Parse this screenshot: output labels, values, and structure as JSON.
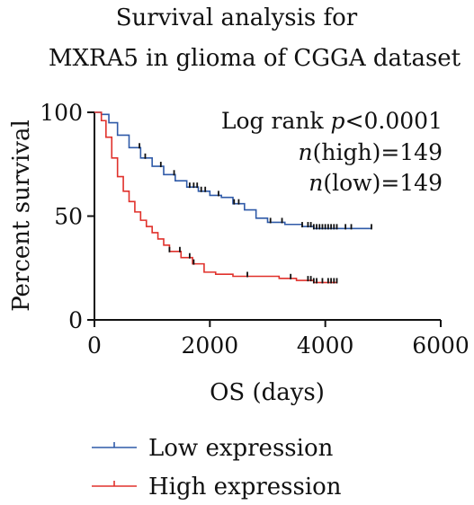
{
  "chart_data": {
    "type": "line",
    "subtype": "kaplan-meier",
    "title": [
      "Survival analysis for",
      "MXRA5 in glioma of CGGA dataset"
    ],
    "xlabel": "OS (days)",
    "ylabel": "Percent survival",
    "xlim": [
      0,
      6000
    ],
    "ylim": [
      0,
      100
    ],
    "x_ticks": [
      0,
      2000,
      4000,
      6000
    ],
    "y_ticks": [
      0,
      50,
      100
    ],
    "grid": false,
    "legend_position": "bottom-left",
    "annotations": {
      "log_rank_prefix": "Log rank ",
      "log_rank_p": "p",
      "log_rank_value": "<0.0001",
      "n_high_var": "n",
      "n_high_text": "(high)=149",
      "n_low_var": "n",
      "n_low_text": "(low)=149"
    },
    "series": [
      {
        "name": "Low expression",
        "color": "#2f5aa8",
        "points": [
          [
            0,
            100
          ],
          [
            120,
            99
          ],
          [
            250,
            95
          ],
          [
            400,
            89
          ],
          [
            600,
            83
          ],
          [
            800,
            78
          ],
          [
            1000,
            74
          ],
          [
            1200,
            70
          ],
          [
            1400,
            67
          ],
          [
            1600,
            64
          ],
          [
            1800,
            62
          ],
          [
            2000,
            60
          ],
          [
            2200,
            59
          ],
          [
            2400,
            56
          ],
          [
            2600,
            53
          ],
          [
            2800,
            49
          ],
          [
            3000,
            47
          ],
          [
            3300,
            46
          ],
          [
            3600,
            45
          ],
          [
            3800,
            44
          ],
          [
            4000,
            44
          ],
          [
            4200,
            44
          ],
          [
            4400,
            44
          ],
          [
            4800,
            44
          ]
        ],
        "censor_x": [
          780,
          880,
          1150,
          1380,
          1650,
          1720,
          1780,
          1850,
          1920,
          2150,
          2420,
          2500,
          3050,
          3250,
          3600,
          3700,
          3750,
          3800,
          3850,
          3900,
          3950,
          4000,
          4050,
          4100,
          4150,
          4200,
          4350,
          4450,
          4800
        ]
      },
      {
        "name": "High expression",
        "color": "#e0312b",
        "points": [
          [
            0,
            100
          ],
          [
            120,
            96
          ],
          [
            200,
            88
          ],
          [
            300,
            78
          ],
          [
            400,
            69
          ],
          [
            500,
            62
          ],
          [
            600,
            57
          ],
          [
            700,
            52
          ],
          [
            800,
            48
          ],
          [
            900,
            45
          ],
          [
            1000,
            42
          ],
          [
            1100,
            39
          ],
          [
            1200,
            36
          ],
          [
            1300,
            33
          ],
          [
            1500,
            30
          ],
          [
            1700,
            27
          ],
          [
            1900,
            23
          ],
          [
            2100,
            22
          ],
          [
            2400,
            21
          ],
          [
            2800,
            21
          ],
          [
            3200,
            20
          ],
          [
            3500,
            19
          ],
          [
            3800,
            18
          ],
          [
            4000,
            18
          ],
          [
            4200,
            18
          ]
        ],
        "censor_x": [
          1300,
          1480,
          1650,
          1720,
          2650,
          3400,
          3700,
          3750,
          3800,
          3850,
          3950,
          4050,
          4100,
          4150,
          4200
        ]
      }
    ]
  }
}
